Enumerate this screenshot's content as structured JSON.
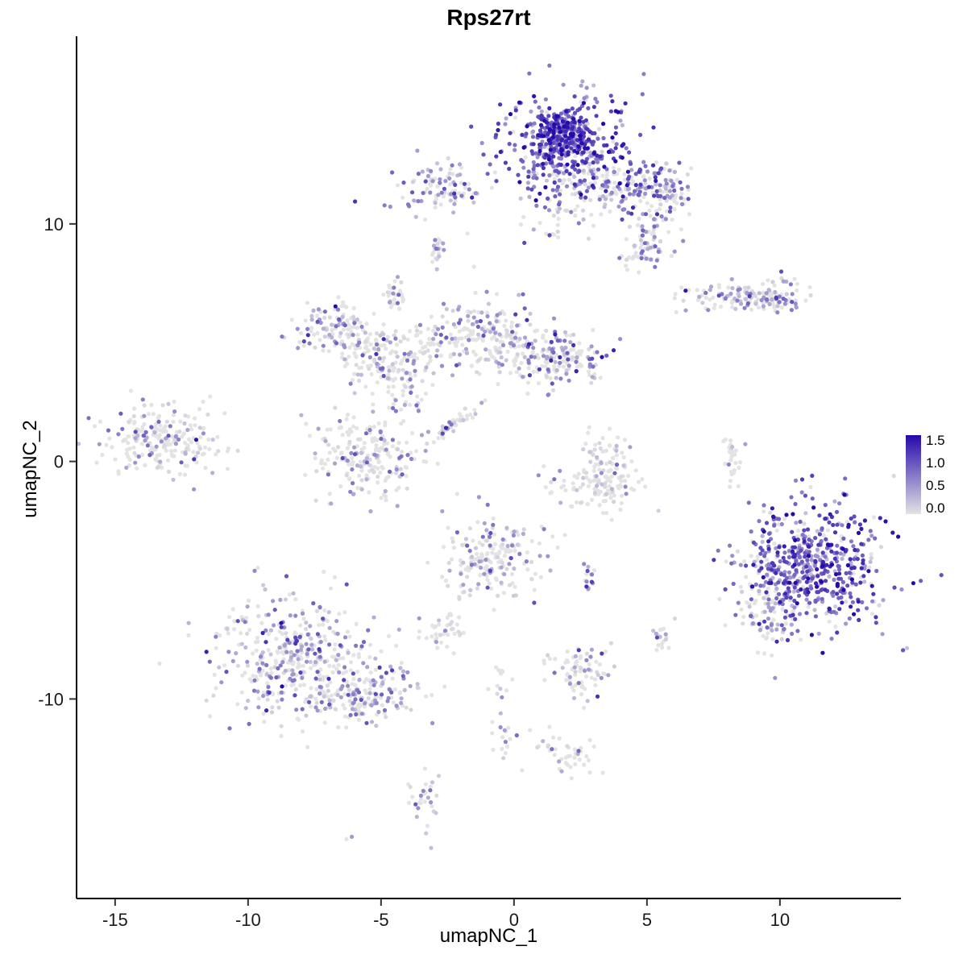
{
  "title": "Rps27rt",
  "axes": {
    "x": {
      "label": "umapNC_1",
      "ticks": [
        -15,
        -10,
        -5,
        0,
        5,
        10
      ],
      "min": -16.45,
      "max": 14.55
    },
    "y": {
      "label": "umapNC_2",
      "ticks": [
        -10,
        0,
        10
      ],
      "min": -18.4,
      "max": 17.9
    }
  },
  "legend": {
    "labels": [
      "1.5",
      "1.0",
      "0.5",
      "0.0"
    ],
    "values": [
      1.5,
      1.0,
      0.5,
      0.0
    ],
    "low_color": "#E3E3E3",
    "high_color": "#2709AB",
    "max_value": 1.5
  },
  "chart_data": {
    "type": "scatter",
    "title": "Rps27rt",
    "xlabel": "umapNC_1",
    "ylabel": "umapNC_2",
    "xlim": [
      -16.45,
      14.55
    ],
    "ylim": [
      -18.4,
      17.9
    ],
    "grid": false,
    "legend_position": "right",
    "color_scale": {
      "low": "#E3E3E3",
      "high": "#2709AB",
      "domain": [
        0,
        1.5
      ],
      "tick_values": [
        0.0,
        0.5,
        1.0,
        1.5
      ]
    },
    "point_radius": 2.6,
    "seed": 1337,
    "clusters": [
      {
        "name": "top-main-blob",
        "cx": 2.1,
        "cy": 13.4,
        "sx": 1.15,
        "sy": 1.0,
        "n": 430,
        "expr_mean": 0.9,
        "expr_frac": 0.88
      },
      {
        "name": "top-main-core",
        "cx": 1.7,
        "cy": 13.9,
        "sx": 0.5,
        "sy": 0.45,
        "n": 120,
        "expr_mean": 1.1,
        "expr_frac": 0.95
      },
      {
        "name": "top-right-arm",
        "cx": 4.4,
        "cy": 11.7,
        "sx": 1.0,
        "sy": 0.55,
        "n": 150,
        "expr_mean": 0.55,
        "expr_frac": 0.6
      },
      {
        "name": "top-right-tip",
        "cx": 6.0,
        "cy": 11.4,
        "sx": 0.4,
        "sy": 0.4,
        "n": 40,
        "expr_mean": 0.5,
        "expr_frac": 0.5
      },
      {
        "name": "right-trail-upper",
        "cx": 5.2,
        "cy": 9.9,
        "sx": 0.45,
        "sy": 0.7,
        "n": 60,
        "expr_mean": 0.5,
        "expr_frac": 0.55
      },
      {
        "name": "right-trail-lower",
        "cx": 4.8,
        "cy": 8.7,
        "sx": 0.35,
        "sy": 0.45,
        "n": 45,
        "expr_mean": 0.5,
        "expr_frac": 0.5
      },
      {
        "name": "below-top-main",
        "cx": 1.6,
        "cy": 10.9,
        "sx": 0.7,
        "sy": 0.8,
        "n": 70,
        "expr_mean": 0.45,
        "expr_frac": 0.5
      },
      {
        "name": "top-left-small",
        "cx": -2.6,
        "cy": 11.5,
        "sx": 0.85,
        "sy": 0.5,
        "n": 100,
        "expr_mean": 0.5,
        "expr_frac": 0.5
      },
      {
        "name": "tiny-mid-upper",
        "cx": -2.9,
        "cy": 8.8,
        "sx": 0.15,
        "sy": 0.35,
        "n": 20,
        "expr_mean": 0.45,
        "expr_frac": 0.5
      },
      {
        "name": "tiny-left-upper",
        "cx": -4.5,
        "cy": 6.9,
        "sx": 0.18,
        "sy": 0.4,
        "n": 28,
        "expr_mean": 0.35,
        "expr_frac": 0.4
      },
      {
        "name": "right-horizontal",
        "cx": 8.6,
        "cy": 6.9,
        "sx": 1.1,
        "sy": 0.3,
        "n": 120,
        "expr_mean": 0.45,
        "expr_frac": 0.5
      },
      {
        "name": "right-arrow-tip",
        "cx": 9.9,
        "cy": 7.0,
        "sx": 0.35,
        "sy": 0.45,
        "n": 40,
        "expr_mean": 0.5,
        "expr_frac": 0.55
      },
      {
        "name": "branch-a",
        "cx": -6.7,
        "cy": 5.6,
        "sx": 0.75,
        "sy": 0.6,
        "n": 110,
        "expr_mean": 0.45,
        "expr_frac": 0.45
      },
      {
        "name": "branch-b",
        "cx": -5.4,
        "cy": 4.5,
        "sx": 0.6,
        "sy": 0.7,
        "n": 90,
        "expr_mean": 0.35,
        "expr_frac": 0.4
      },
      {
        "name": "branch-c",
        "cx": -4.3,
        "cy": 3.5,
        "sx": 0.5,
        "sy": 0.9,
        "n": 85,
        "expr_mean": 0.35,
        "expr_frac": 0.4
      },
      {
        "name": "branch-d",
        "cx": -3.3,
        "cy": 4.8,
        "sx": 0.35,
        "sy": 0.6,
        "n": 45,
        "expr_mean": 0.3,
        "expr_frac": 0.4
      },
      {
        "name": "center-top",
        "cx": -1.3,
        "cy": 5.5,
        "sx": 0.8,
        "sy": 0.85,
        "n": 140,
        "expr_mean": 0.45,
        "expr_frac": 0.5
      },
      {
        "name": "bridge",
        "cx": 0.2,
        "cy": 4.4,
        "sx": 0.8,
        "sy": 0.7,
        "n": 70,
        "expr_mean": 0.25,
        "expr_frac": 0.3
      },
      {
        "name": "right-of-center",
        "cx": 1.8,
        "cy": 4.3,
        "sx": 0.8,
        "sy": 0.65,
        "n": 150,
        "expr_mean": 0.55,
        "expr_frac": 0.6
      },
      {
        "name": "far-left",
        "cx": -13.3,
        "cy": 0.9,
        "sx": 1.05,
        "sy": 0.75,
        "n": 230,
        "expr_mean": 0.3,
        "expr_frac": 0.35
      },
      {
        "name": "center-blob",
        "cx": -5.6,
        "cy": 0.3,
        "sx": 0.95,
        "sy": 0.95,
        "n": 210,
        "expr_mean": 0.35,
        "expr_frac": 0.4
      },
      {
        "name": "diagonal-streak",
        "cx": -2.3,
        "cy": 1.5,
        "sx": 0.8,
        "sy": 0.12,
        "n": 45,
        "expr_mean": 0.3,
        "expr_frac": 0.4,
        "rot": 40
      },
      {
        "name": "u-cluster",
        "cx": 3.2,
        "cy": -0.9,
        "sx": 0.85,
        "sy": 0.6,
        "n": 130,
        "expr_mean": 0.2,
        "expr_frac": 0.25
      },
      {
        "name": "u-cluster-upper",
        "cx": 3.4,
        "cy": 0.3,
        "sx": 0.5,
        "sy": 0.5,
        "n": 35,
        "expr_mean": 0.3,
        "expr_frac": 0.3
      },
      {
        "name": "tiny-right-mid",
        "cx": 8.2,
        "cy": 0.2,
        "sx": 0.15,
        "sy": 0.5,
        "n": 26,
        "expr_mean": 0.1,
        "expr_frac": 0.15
      },
      {
        "name": "big-right-blob",
        "cx": 11.3,
        "cy": -4.5,
        "sx": 1.35,
        "sy": 1.35,
        "n": 560,
        "expr_mean": 0.9,
        "expr_frac": 0.88
      },
      {
        "name": "big-right-fringe",
        "cx": 9.4,
        "cy": -5.9,
        "sx": 0.55,
        "sy": 1.1,
        "n": 90,
        "expr_mean": 0.3,
        "expr_frac": 0.35
      },
      {
        "name": "center-low",
        "cx": -0.9,
        "cy": -4.0,
        "sx": 0.95,
        "sy": 0.85,
        "n": 190,
        "expr_mean": 0.4,
        "expr_frac": 0.45
      },
      {
        "name": "tiny-pair",
        "cx": 2.8,
        "cy": -4.9,
        "sx": 0.15,
        "sy": 0.3,
        "n": 14,
        "expr_mean": 0.5,
        "expr_frac": 0.6
      },
      {
        "name": "small-gray-low",
        "cx": -2.6,
        "cy": -7.1,
        "sx": 0.45,
        "sy": 0.35,
        "n": 40,
        "expr_mean": 0.2,
        "expr_frac": 0.25
      },
      {
        "name": "bottom-left-triangle",
        "cx": -8.4,
        "cy": -8.3,
        "sx": 1.5,
        "sy": 1.3,
        "n": 430,
        "expr_mean": 0.5,
        "expr_frac": 0.5
      },
      {
        "name": "bottom-left-tail",
        "cx": -5.6,
        "cy": -9.9,
        "sx": 1.0,
        "sy": 0.55,
        "n": 140,
        "expr_mean": 0.45,
        "expr_frac": 0.5
      },
      {
        "name": "tiny-south-right",
        "cx": 5.6,
        "cy": -7.4,
        "sx": 0.25,
        "sy": 0.3,
        "n": 18,
        "expr_mean": 0.3,
        "expr_frac": 0.4
      },
      {
        "name": "low-mid",
        "cx": 2.4,
        "cy": -8.9,
        "sx": 0.55,
        "sy": 0.6,
        "n": 75,
        "expr_mean": 0.3,
        "expr_frac": 0.35
      },
      {
        "name": "sparse-col-a",
        "cx": -0.6,
        "cy": -9.3,
        "sx": 0.25,
        "sy": 0.4,
        "n": 12,
        "expr_mean": 0.3,
        "expr_frac": 0.4
      },
      {
        "name": "sparse-col-b",
        "cx": -0.3,
        "cy": -11.6,
        "sx": 0.3,
        "sy": 0.5,
        "n": 16,
        "expr_mean": 0.35,
        "expr_frac": 0.4
      },
      {
        "name": "bottom-small",
        "cx": 2.2,
        "cy": -12.5,
        "sx": 0.45,
        "sy": 0.45,
        "n": 32,
        "expr_mean": 0.35,
        "expr_frac": 0.4
      },
      {
        "name": "bottom-trail",
        "cx": 1.2,
        "cy": -11.7,
        "sx": 0.3,
        "sy": 0.3,
        "n": 10,
        "expr_mean": 0.3,
        "expr_frac": 0.3
      },
      {
        "name": "bottom-left-small",
        "cx": -3.4,
        "cy": -14.1,
        "sx": 0.25,
        "sy": 0.65,
        "n": 30,
        "expr_mean": 0.4,
        "expr_frac": 0.45
      }
    ],
    "extra_points": [
      {
        "x": -6.1,
        "y": -15.8,
        "v": 0.5
      },
      {
        "x": -6.3,
        "y": -15.9,
        "v": 0.0
      },
      {
        "x": 0.3,
        "y": -13.0,
        "v": 0.0
      },
      {
        "x": -1.5,
        "y": 8.2,
        "v": 0.0
      }
    ]
  }
}
